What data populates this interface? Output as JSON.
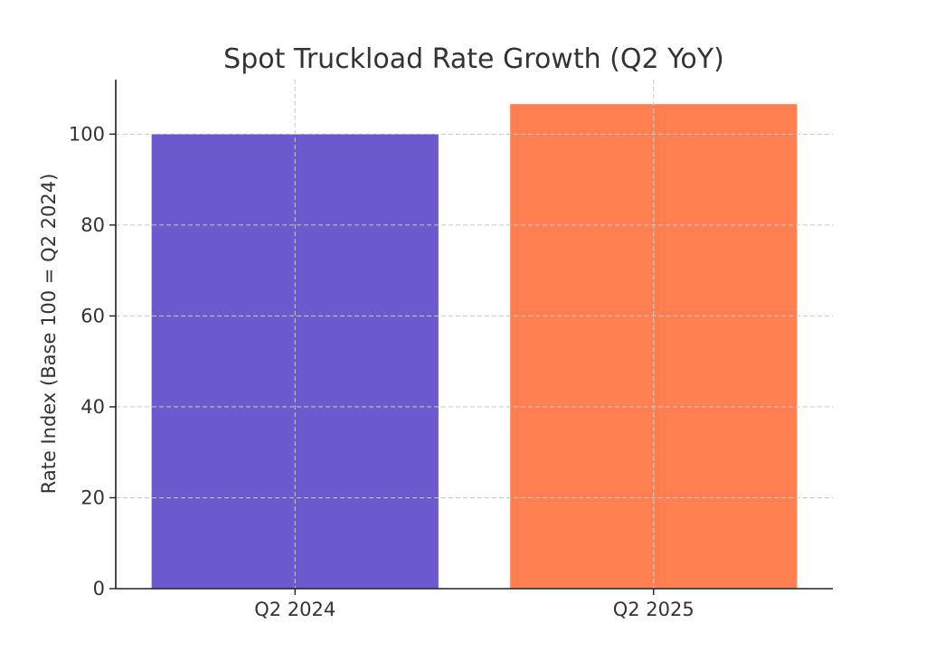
{
  "chart_data": {
    "type": "bar",
    "title": "Spot Truckload Rate Growth (Q2 YoY)",
    "xlabel": "",
    "ylabel": "Rate Index (Base 100 = Q2 2024)",
    "categories": [
      "Q2 2024",
      "Q2 2025"
    ],
    "values": [
      100,
      106.6
    ],
    "colors": [
      "#6a5acd",
      "#ff7f50"
    ],
    "ylim": [
      0,
      112
    ],
    "yticks": [
      0,
      20,
      40,
      60,
      80,
      100
    ],
    "grid": true,
    "legend": "none"
  }
}
